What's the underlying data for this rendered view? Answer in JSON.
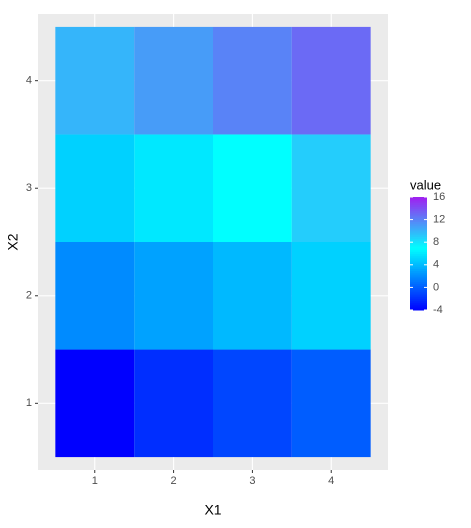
{
  "chart_data": {
    "type": "heatmap",
    "x_label": "X1",
    "y_label": "X2",
    "legend_title": "value",
    "x": [
      1,
      2,
      3,
      4,
      1,
      2,
      3,
      4,
      1,
      2,
      3,
      4,
      1,
      2,
      3,
      4
    ],
    "y": [
      1,
      1,
      1,
      1,
      2,
      2,
      2,
      2,
      3,
      3,
      3,
      3,
      4,
      4,
      4,
      4
    ],
    "values": [
      -4,
      -2,
      -1,
      0,
      2,
      3,
      4,
      5,
      5,
      6,
      7,
      9,
      10,
      11,
      12,
      13
    ],
    "xlim": [
      0.28,
      4.72
    ],
    "ylim": [
      0.38,
      4.62
    ],
    "xticks": [
      1,
      2,
      3,
      4
    ],
    "yticks": [
      1,
      2,
      3,
      4
    ],
    "colors": {
      "low": "#0000FF",
      "mid": "#00FFFF",
      "high": "#A020F0"
    },
    "color_midpoint": 7,
    "color_lim": [
      -4,
      16
    ],
    "legend_ticks": [
      -4,
      0,
      4,
      8,
      12,
      16
    ],
    "grid": true
  }
}
